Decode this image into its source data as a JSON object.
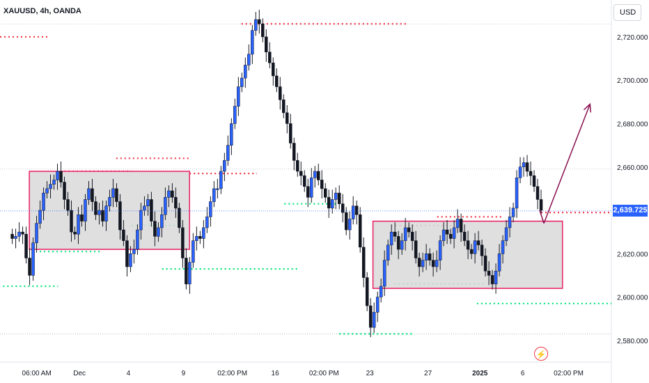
{
  "header": {
    "symbol": "XAUUSD, 4h, OANDA",
    "currency": "USD"
  },
  "last_price": {
    "label": "2,639.725",
    "value": 2639.725,
    "color": "#2962ff"
  },
  "icons": {
    "alert": "lightning-icon"
  },
  "colors": {
    "up_candle": "#2962ff",
    "down_candle": "#131722",
    "wick": "#131722",
    "zone_border": "#e91e63",
    "zone_fill": "#d9d9d9",
    "resistance_dots": "#f23645",
    "support_dots": "#00e676",
    "arrow": "#880e4f"
  },
  "chart_data": {
    "type": "candlestick",
    "y_axis": {
      "range": [
        2570,
        2737
      ],
      "ticks": [
        2580,
        2600,
        2620,
        2640,
        2660,
        2680,
        2700,
        2720
      ],
      "tick_labels": [
        "2,580.000",
        "2,600.000",
        "2,620.000",
        "2,640.000",
        "2,660.000",
        "2,680.000",
        "2,700.000",
        "2,720.000"
      ]
    },
    "x_axis": {
      "range": [
        0,
        100
      ],
      "tick_labels": [
        "06:00 AM",
        "Dec",
        "4",
        "9",
        "02:00 PM",
        "16",
        "02:00 PM",
        "23",
        "27",
        "2025",
        "6",
        "02:00 PM"
      ],
      "tick_positions": [
        6,
        13,
        21,
        30,
        38,
        45,
        53,
        60.5,
        70,
        78.5,
        85.5,
        93
      ],
      "bold_labels": [
        "2025"
      ]
    },
    "close_series": [
      2627,
      2628,
      2630,
      2629,
      2618,
      2610,
      2625,
      2634,
      2640,
      2648,
      2650,
      2652,
      2654,
      2658,
      2653,
      2645,
      2640,
      2630,
      2629,
      2638,
      2635,
      2645,
      2650,
      2644,
      2638,
      2640,
      2635,
      2642,
      2646,
      2650,
      2644,
      2631,
      2626,
      2614,
      2620,
      2622,
      2631,
      2640,
      2642,
      2645,
      2635,
      2628,
      2632,
      2638,
      2646,
      2649,
      2646,
      2641,
      2632,
      2618,
      2606,
      2616,
      2626,
      2628,
      2627,
      2632,
      2637,
      2644,
      2650,
      2650,
      2658,
      2663,
      2670,
      2680,
      2688,
      2697,
      2701,
      2707,
      2712,
      2723,
      2728,
      2726,
      2720,
      2713,
      2708,
      2702,
      2697,
      2691,
      2685,
      2680,
      2671,
      2663,
      2658,
      2656,
      2651,
      2646,
      2655,
      2658,
      2654,
      2650,
      2646,
      2641,
      2645,
      2648,
      2643,
      2639,
      2631,
      2636,
      2642,
      2638,
      2623,
      2609,
      2596,
      2586,
      2593,
      2600,
      2605,
      2617,
      2624,
      2630,
      2628,
      2622,
      2626,
      2632,
      2630,
      2626,
      2618,
      2614,
      2617,
      2620,
      2617,
      2614,
      2617,
      2626,
      2631,
      2629,
      2627,
      2632,
      2636,
      2630,
      2626,
      2622,
      2620,
      2626,
      2624,
      2619,
      2612,
      2610,
      2606,
      2612,
      2620,
      2626,
      2632,
      2637,
      2641,
      2655,
      2660,
      2662,
      2658,
      2656,
      2651,
      2645,
      2640
    ],
    "resistance_levels": [
      2720,
      2658,
      2664,
      2726,
      2657,
      2633,
      2637,
      2639
    ],
    "support_levels": [
      2605,
      2621,
      2613,
      2643,
      2633,
      2583,
      2606,
      2597
    ],
    "zones": [
      {
        "top": 2658,
        "bottom": 2622
      },
      {
        "top": 2635,
        "bottom": 2604
      }
    ],
    "projection": {
      "from": 2634,
      "to": 2689
    },
    "reference_lines": [
      2726,
      2659,
      2583
    ]
  }
}
